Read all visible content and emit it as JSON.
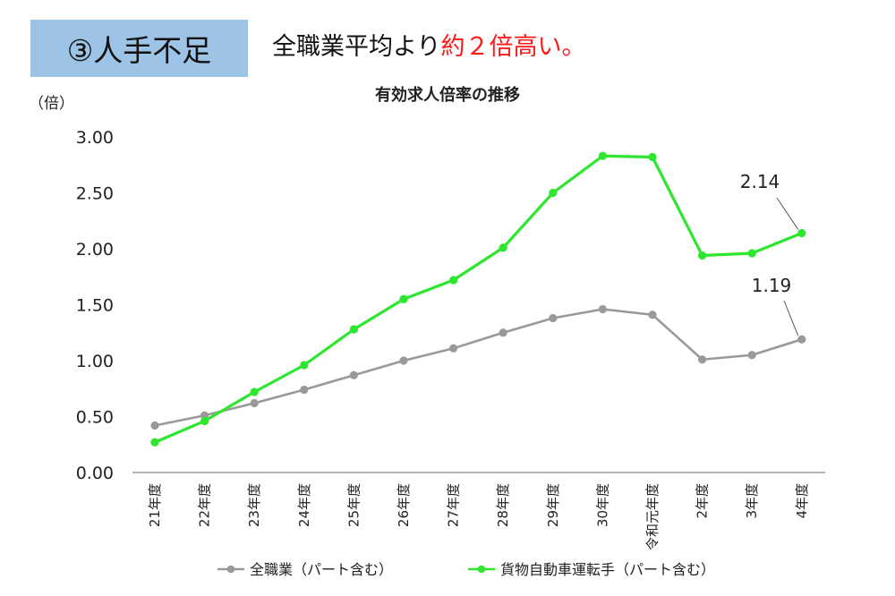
{
  "header": {
    "badge": "③人手不足",
    "headline_main": "全職業平均より",
    "headline_accent": "約２倍高い。"
  },
  "colors": {
    "series_all": "#999999",
    "series_driver": "#2ee62e",
    "badge_bg": "#9dc3e6",
    "accent": "#ff1a1a"
  },
  "chart_data": {
    "type": "line",
    "title": "有効求人倍率の推移",
    "ylabel": "（倍）",
    "xlabel": "",
    "ylim": [
      0,
      3
    ],
    "yticks": [
      "0.00",
      "0.50",
      "1.00",
      "1.50",
      "2.00",
      "2.50",
      "3.00"
    ],
    "categories": [
      "21年度",
      "22年度",
      "23年度",
      "24年度",
      "25年度",
      "26年度",
      "27年度",
      "28年度",
      "29年度",
      "30年度",
      "令和元年度",
      "2年度",
      "3年度",
      "4年度"
    ],
    "series": [
      {
        "name": "全職業（パート含む）",
        "values": [
          0.42,
          0.51,
          0.62,
          0.74,
          0.87,
          1.0,
          1.11,
          1.25,
          1.38,
          1.46,
          1.41,
          1.01,
          1.05,
          1.19
        ]
      },
      {
        "name": "貨物自動車運転手（パート含む）",
        "values": [
          0.27,
          0.46,
          0.72,
          0.96,
          1.28,
          1.55,
          1.72,
          2.01,
          2.5,
          2.83,
          2.82,
          1.94,
          1.96,
          2.14
        ]
      }
    ],
    "annotations": [
      "2.14",
      "1.19"
    ],
    "legend_position": "bottom",
    "grid": false
  }
}
